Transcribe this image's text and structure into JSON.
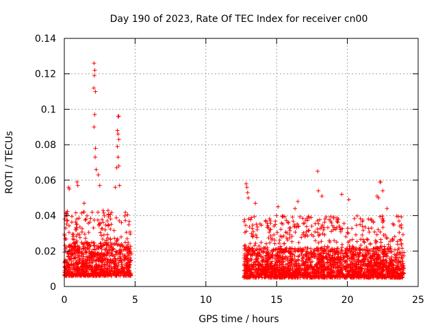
{
  "chart_data": {
    "type": "scatter",
    "title": "Day 190 of 2023, Rate Of TEC Index for receiver cn00",
    "xlabel": "GPS time / hours",
    "ylabel": "ROTI / TECUs",
    "xlim": [
      0,
      25
    ],
    "ylim": [
      0,
      0.14
    ],
    "xticks": [
      0,
      5,
      10,
      15,
      20,
      25
    ],
    "xtick_labels": [
      "0",
      "5",
      "10",
      "15",
      "20",
      "25"
    ],
    "yticks": [
      0,
      0.02,
      0.04,
      0.06,
      0.08,
      0.1,
      0.12,
      0.14
    ],
    "ytick_labels": [
      "0",
      "0.02",
      "0.04",
      "0.06",
      "0.08",
      "0.1",
      "0.12",
      "0.14"
    ],
    "grid": true,
    "marker": "+",
    "color": "#ff0000",
    "series": [
      {
        "name": "ROTI",
        "segments": [
          {
            "x_start": 0.0,
            "x_end": 4.75,
            "typical_range": [
              0.006,
              0.025
            ]
          },
          {
            "x_start": 12.7,
            "x_end": 24.0,
            "typical_range": [
              0.005,
              0.022
            ]
          }
        ],
        "outliers": [
          [
            0.3,
            0.056
          ],
          [
            0.35,
            0.055
          ],
          [
            0.9,
            0.059
          ],
          [
            0.95,
            0.057
          ],
          [
            1.4,
            0.047
          ],
          [
            2.1,
            0.126
          ],
          [
            2.15,
            0.122
          ],
          [
            2.12,
            0.119
          ],
          [
            2.08,
            0.112
          ],
          [
            2.2,
            0.11
          ],
          [
            2.15,
            0.097
          ],
          [
            2.1,
            0.09
          ],
          [
            2.2,
            0.078
          ],
          [
            2.18,
            0.073
          ],
          [
            2.25,
            0.066
          ],
          [
            2.4,
            0.063
          ],
          [
            2.5,
            0.057
          ],
          [
            3.8,
            0.096
          ],
          [
            3.85,
            0.096
          ],
          [
            3.75,
            0.088
          ],
          [
            3.8,
            0.086
          ],
          [
            3.85,
            0.083
          ],
          [
            3.75,
            0.079
          ],
          [
            3.8,
            0.073
          ],
          [
            3.85,
            0.068
          ],
          [
            3.7,
            0.067
          ],
          [
            3.9,
            0.057
          ],
          [
            3.6,
            0.056
          ],
          [
            12.85,
            0.058
          ],
          [
            12.9,
            0.056
          ],
          [
            12.95,
            0.053
          ],
          [
            13.0,
            0.05
          ],
          [
            13.5,
            0.047
          ],
          [
            15.1,
            0.045
          ],
          [
            15.0,
            0.04
          ],
          [
            16.3,
            0.044
          ],
          [
            16.5,
            0.048
          ],
          [
            17.9,
            0.065
          ],
          [
            17.95,
            0.054
          ],
          [
            18.2,
            0.051
          ],
          [
            19.6,
            0.052
          ],
          [
            20.1,
            0.049
          ],
          [
            22.3,
            0.059
          ],
          [
            22.35,
            0.059
          ],
          [
            22.5,
            0.054
          ],
          [
            22.1,
            0.051
          ],
          [
            22.2,
            0.05
          ],
          [
            22.8,
            0.044
          ]
        ]
      }
    ]
  }
}
